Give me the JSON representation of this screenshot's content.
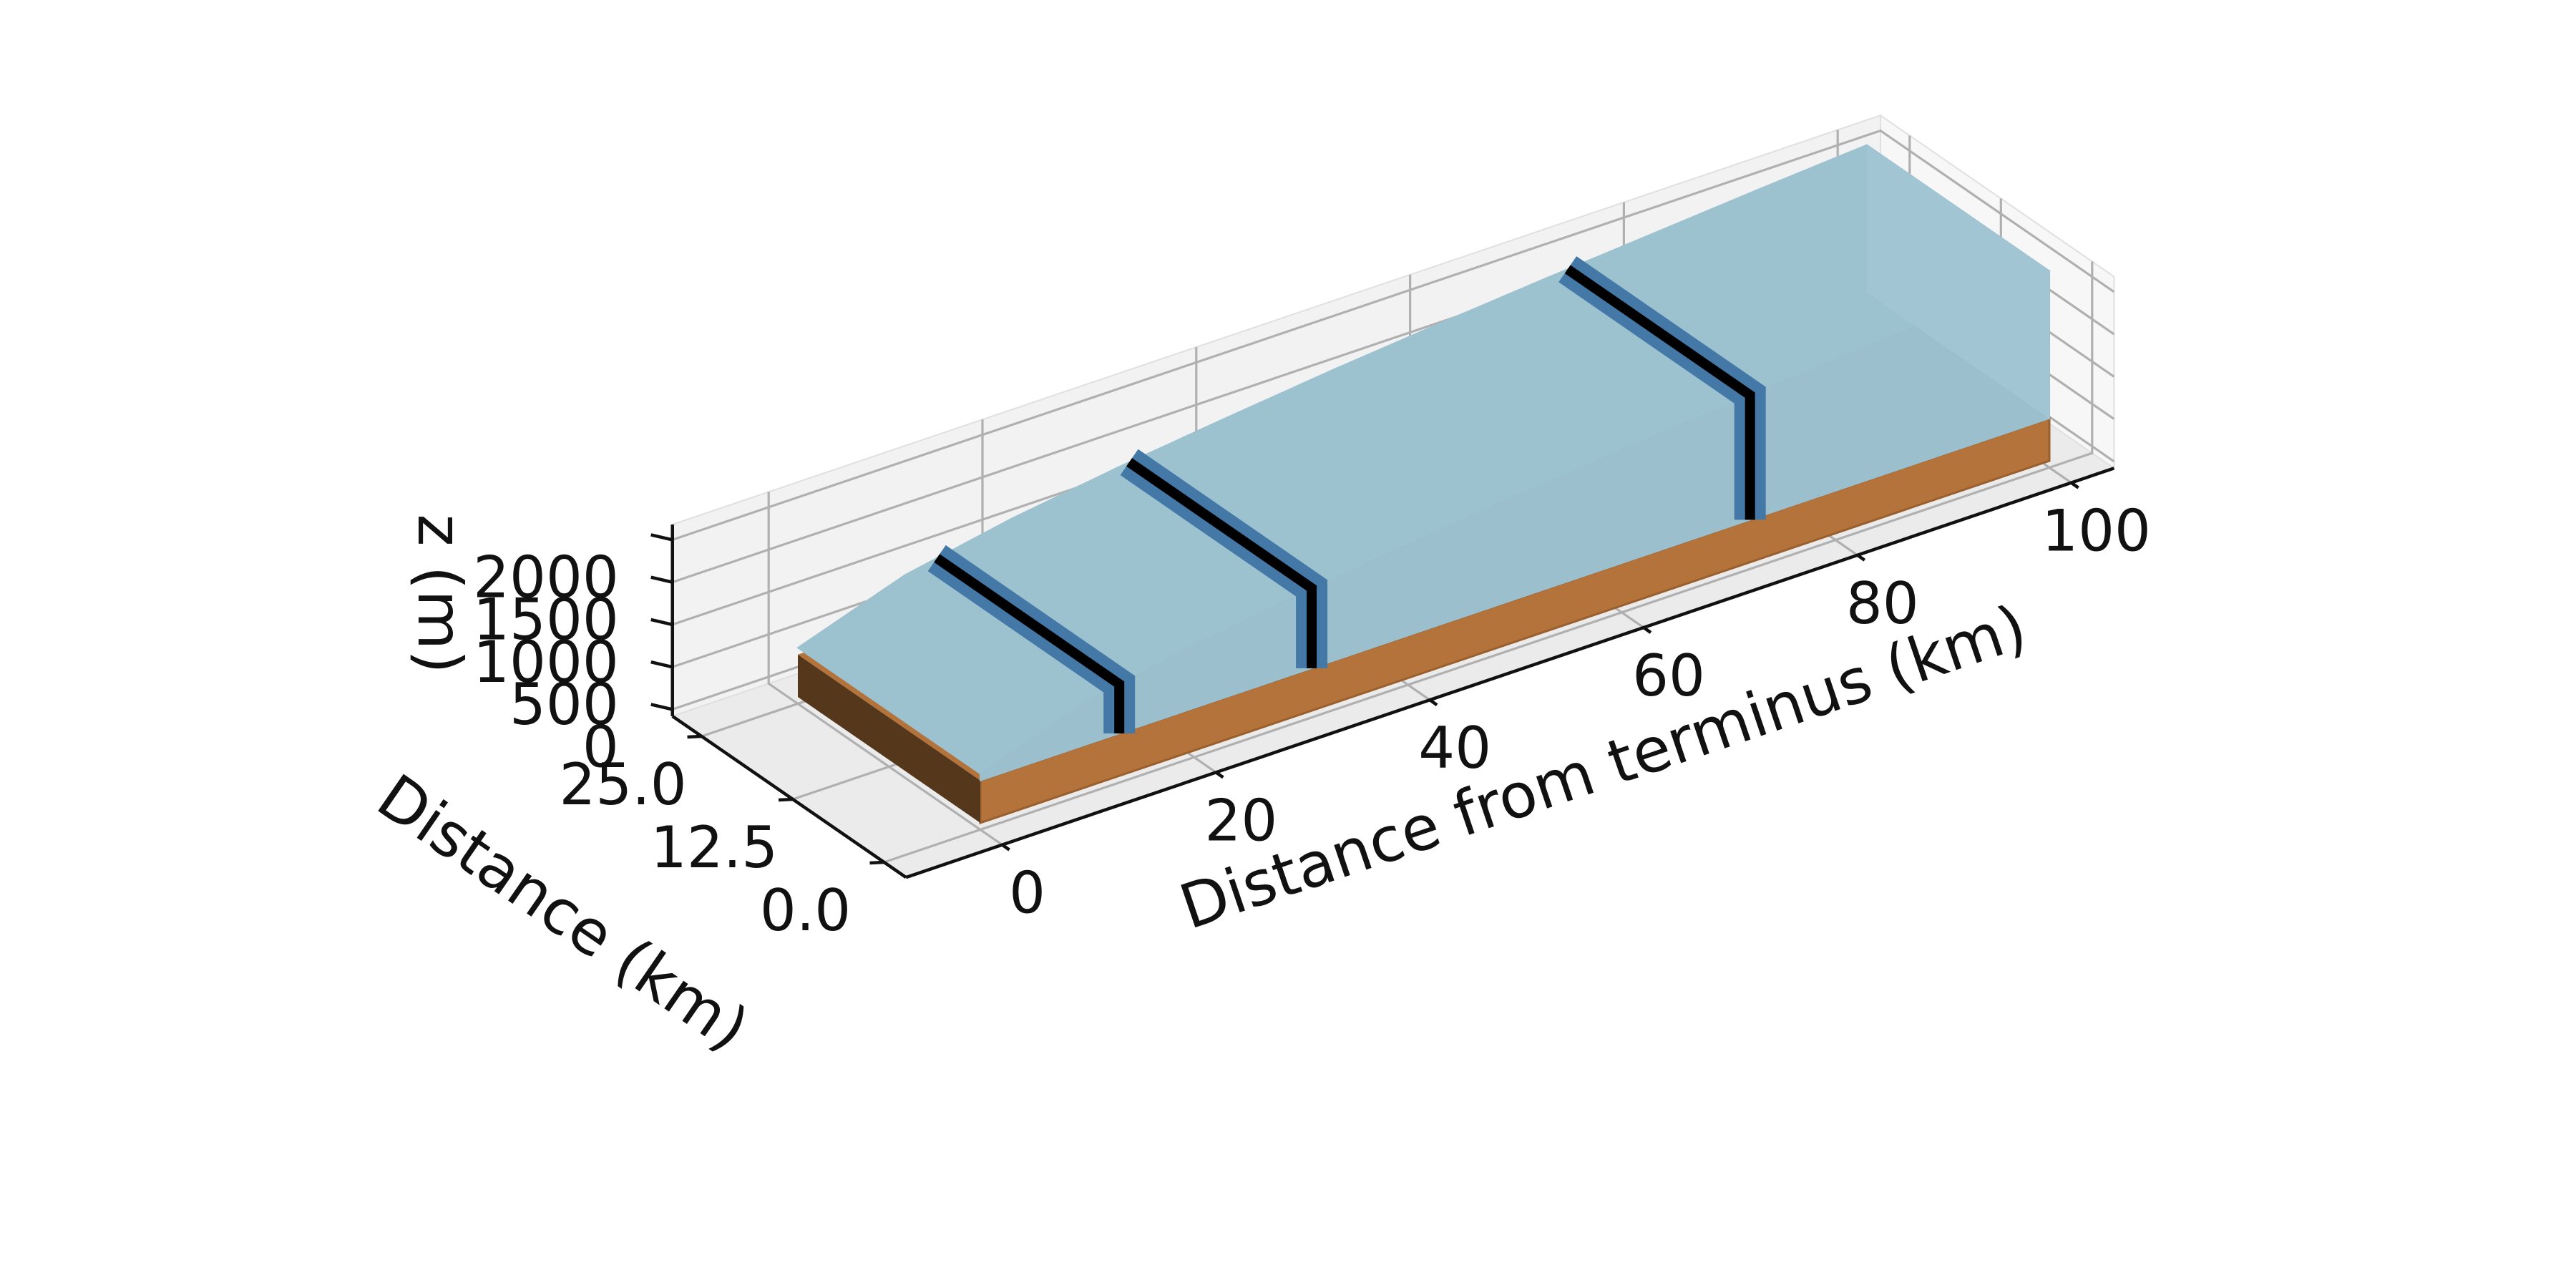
{
  "chart_data": {
    "type": "3d-surface",
    "x_axis": {
      "label": "Distance from terminus (km)",
      "range": [
        0,
        100
      ],
      "ticks": [
        0,
        20,
        40,
        60,
        80,
        100
      ],
      "tick_labels": [
        "0",
        "20",
        "40",
        "60",
        "80",
        "100"
      ]
    },
    "y_axis": {
      "label": "Distance (km)",
      "range": [
        0,
        25
      ],
      "ticks": [
        0,
        12.5,
        25
      ],
      "tick_labels": [
        "0.0",
        "12.5",
        "25.0"
      ]
    },
    "z_axis": {
      "label": "z (m)",
      "range": [
        0,
        2000
      ],
      "ticks": [
        0,
        500,
        1000,
        1500,
        2000
      ],
      "tick_labels": [
        "0",
        "500",
        "1000",
        "1500",
        "2000"
      ]
    },
    "bed": {
      "elevation_m": 0,
      "thickness_m": 500,
      "x_range_km": [
        0,
        100
      ],
      "top_color": "#b4733a",
      "end_color": "#55371b"
    },
    "ice_surface": {
      "x_km": [
        0,
        10,
        20,
        30,
        40,
        50,
        60,
        70,
        80,
        90,
        100
      ],
      "elevation_m": [
        580,
        1010,
        1250,
        1430,
        1580,
        1720,
        1840,
        1950,
        2050,
        2150,
        2240
      ],
      "color": "#9cc2d0"
    },
    "flux_gates": {
      "x_km": [
        13,
        31,
        72
      ],
      "band_color": "#4378a7",
      "line_color": "#000000"
    },
    "grid": true,
    "pane_color": "#f1f1f1"
  }
}
